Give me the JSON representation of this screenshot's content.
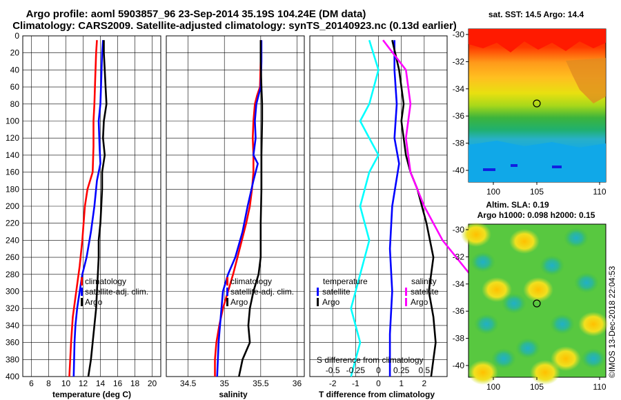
{
  "header": {
    "title_line1": "Argo profile: aoml 5903857_96 23-Sep-2014 35.19S 104.24E (DM data)",
    "title_line2": "Climatology: CARS2009. Satellite-adjusted climatology: synTS_20140923.nc (0.13d earlier)"
  },
  "colors": {
    "climatology": "#ff0000",
    "satellite": "#0000ff",
    "argo": "#000000",
    "t_satellite": "#0000ff",
    "s_satellite": "#ff00ff",
    "s_satellite_diff": "#00ffff"
  },
  "chart_data": [
    {
      "type": "line",
      "id": "temperature",
      "xlabel": "temperature (deg C)",
      "ylabel": "depth",
      "xlim": [
        5,
        21
      ],
      "ylim": [
        400,
        0
      ],
      "xticks": [
        "6",
        "8",
        "10",
        "12",
        "14",
        "16",
        "18",
        "20"
      ],
      "xtick_values": [
        6,
        8,
        10,
        12,
        14,
        16,
        18,
        20
      ],
      "yticks": [
        "0",
        "20",
        "40",
        "60",
        "80",
        "100",
        "120",
        "140",
        "160",
        "180",
        "200",
        "220",
        "240",
        "260",
        "280",
        "300",
        "320",
        "340",
        "360",
        "380",
        "400"
      ],
      "ytick_values": [
        0,
        20,
        40,
        60,
        80,
        100,
        120,
        140,
        160,
        180,
        200,
        220,
        240,
        260,
        280,
        300,
        320,
        340,
        360,
        380,
        400
      ],
      "legend": [
        "climatology",
        "satellite-adj. clim.",
        "Argo"
      ],
      "series": [
        {
          "name": "climatology",
          "color_key": "climatology",
          "points": [
            [
              13.6,
              5
            ],
            [
              13.5,
              20
            ],
            [
              13.4,
              50
            ],
            [
              13.3,
              80
            ],
            [
              13.2,
              100
            ],
            [
              13.2,
              130
            ],
            [
              13.1,
              160
            ],
            [
              12.5,
              180
            ],
            [
              12.2,
              200
            ],
            [
              11.9,
              240
            ],
            [
              11.6,
              270
            ],
            [
              11.2,
              300
            ],
            [
              10.8,
              330
            ],
            [
              10.6,
              360
            ],
            [
              10.4,
              400
            ]
          ]
        },
        {
          "name": "satellite-adj. clim.",
          "color_key": "satellite",
          "points": [
            [
              14.3,
              5
            ],
            [
              14.2,
              20
            ],
            [
              14.1,
              50
            ],
            [
              14.0,
              80
            ],
            [
              13.8,
              100
            ],
            [
              13.9,
              130
            ],
            [
              14.0,
              150
            ],
            [
              13.6,
              170
            ],
            [
              13.3,
              200
            ],
            [
              12.9,
              230
            ],
            [
              12.4,
              260
            ],
            [
              11.9,
              280
            ],
            [
              11.6,
              300
            ],
            [
              11.3,
              320
            ],
            [
              11.1,
              340
            ],
            [
              11.0,
              360
            ],
            [
              10.9,
              400
            ]
          ]
        },
        {
          "name": "Argo",
          "color_key": "argo",
          "points": [
            [
              14.4,
              5
            ],
            [
              14.4,
              20
            ],
            [
              14.5,
              40
            ],
            [
              14.6,
              60
            ],
            [
              14.7,
              80
            ],
            [
              14.4,
              100
            ],
            [
              14.3,
              120
            ],
            [
              14.5,
              140
            ],
            [
              14.2,
              160
            ],
            [
              14.2,
              180
            ],
            [
              14.1,
              200
            ],
            [
              14.0,
              220
            ],
            [
              13.8,
              240
            ],
            [
              13.8,
              260
            ],
            [
              13.7,
              280
            ],
            [
              13.6,
              300
            ],
            [
              13.5,
              320
            ],
            [
              13.3,
              340
            ],
            [
              13.1,
              360
            ],
            [
              12.9,
              380
            ],
            [
              12.6,
              400
            ]
          ]
        }
      ]
    },
    {
      "type": "line",
      "id": "salinity",
      "xlabel": "salinity",
      "xlim": [
        34.2,
        36.1
      ],
      "ylim": [
        400,
        0
      ],
      "xticks": [
        "34.5",
        "35",
        "35.5",
        "36"
      ],
      "xtick_values": [
        34.5,
        35,
        35.5,
        36
      ],
      "legend": [
        "climatology",
        "satellite-adj. clim.",
        "Argo"
      ],
      "series": [
        {
          "name": "climatology",
          "color_key": "climatology",
          "points": [
            [
              35.5,
              5
            ],
            [
              35.5,
              30
            ],
            [
              35.49,
              60
            ],
            [
              35.45,
              70
            ],
            [
              35.42,
              80
            ],
            [
              35.4,
              100
            ],
            [
              35.39,
              120
            ],
            [
              35.4,
              140
            ],
            [
              35.4,
              160
            ],
            [
              35.38,
              180
            ],
            [
              35.35,
              200
            ],
            [
              35.3,
              220
            ],
            [
              35.24,
              240
            ],
            [
              35.18,
              260
            ],
            [
              35.12,
              280
            ],
            [
              35.05,
              300
            ],
            [
              34.98,
              320
            ],
            [
              34.93,
              340
            ],
            [
              34.89,
              360
            ],
            [
              34.87,
              380
            ],
            [
              34.87,
              400
            ]
          ]
        },
        {
          "name": "satellite-adj. clim.",
          "color_key": "satellite",
          "points": [
            [
              35.51,
              5
            ],
            [
              35.51,
              30
            ],
            [
              35.5,
              60
            ],
            [
              35.44,
              80
            ],
            [
              35.42,
              100
            ],
            [
              35.43,
              120
            ],
            [
              35.4,
              140
            ],
            [
              35.46,
              150
            ],
            [
              35.4,
              170
            ],
            [
              35.32,
              200
            ],
            [
              35.25,
              230
            ],
            [
              35.15,
              260
            ],
            [
              35.05,
              280
            ],
            [
              34.98,
              300
            ],
            [
              34.95,
              330
            ],
            [
              34.92,
              360
            ],
            [
              34.9,
              400
            ]
          ]
        },
        {
          "name": "Argo",
          "color_key": "argo",
          "points": [
            [
              35.5,
              5
            ],
            [
              35.5,
              30
            ],
            [
              35.51,
              60
            ],
            [
              35.52,
              80
            ],
            [
              35.52,
              100
            ],
            [
              35.51,
              140
            ],
            [
              35.51,
              180
            ],
            [
              35.5,
              220
            ],
            [
              35.5,
              260
            ],
            [
              35.47,
              280
            ],
            [
              35.4,
              300
            ],
            [
              35.35,
              320
            ],
            [
              35.33,
              340
            ],
            [
              35.35,
              360
            ],
            [
              35.25,
              380
            ],
            [
              35.2,
              400
            ]
          ]
        }
      ]
    },
    {
      "type": "line",
      "id": "difference",
      "xlabel": "T difference from climatology",
      "xlabel_top": "S difference from climatology",
      "xlim": [
        -3,
        3
      ],
      "ylim": [
        400,
        0
      ],
      "xticks": [
        "-2",
        "-1",
        "0",
        "1",
        "2"
      ],
      "xtick_values": [
        -2,
        -1,
        0,
        1,
        2
      ],
      "sticks": [
        "-0.5",
        "-0.25",
        "0",
        "0.25",
        "0.5"
      ],
      "stick_values": [
        -0.5,
        -0.25,
        0,
        0.25,
        0.5
      ],
      "legend_temperature_title": "temperature",
      "legend_salinity_title": "salinity",
      "legend_temperature": [
        "satellite",
        "Argo"
      ],
      "legend_salinity": [
        "satellite",
        "Argo"
      ],
      "series": [
        {
          "name": "T satellite",
          "color_key": "t_satellite",
          "points": [
            [
              0.7,
              5
            ],
            [
              0.7,
              40
            ],
            [
              0.8,
              80
            ],
            [
              0.7,
              120
            ],
            [
              0.9,
              150
            ],
            [
              0.6,
              200
            ],
            [
              0.5,
              250
            ],
            [
              0.6,
              300
            ],
            [
              0.5,
              350
            ],
            [
              0.5,
              400
            ]
          ]
        },
        {
          "name": "T Argo",
          "color_key": "argo",
          "points": [
            [
              0.6,
              5
            ],
            [
              0.9,
              40
            ],
            [
              1.0,
              60
            ],
            [
              1.1,
              80
            ],
            [
              1.0,
              100
            ],
            [
              1.1,
              120
            ],
            [
              1.2,
              140
            ],
            [
              1.4,
              160
            ],
            [
              1.7,
              180
            ],
            [
              1.9,
              200
            ],
            [
              2.1,
              220
            ],
            [
              2.4,
              260
            ],
            [
              2.2,
              300
            ],
            [
              2.4,
              330
            ],
            [
              2.5,
              360
            ],
            [
              2.3,
              400
            ]
          ]
        },
        {
          "name": "S satellite",
          "color_key": "s_satellite_diff",
          "points": [
            [
              -0.1,
              5
            ],
            [
              0.0,
              40
            ],
            [
              -0.1,
              80
            ],
            [
              -0.2,
              100
            ],
            [
              -0.1,
              120
            ],
            [
              0.0,
              140
            ],
            [
              -0.1,
              160
            ],
            [
              -0.2,
              200
            ],
            [
              -0.1,
              240
            ],
            [
              -0.2,
              280
            ],
            [
              -0.3,
              320
            ],
            [
              -0.2,
              360
            ],
            [
              -0.3,
              400
            ]
          ]
        },
        {
          "name": "S Argo",
          "color_key": "s_satellite",
          "points": [
            [
              0.05,
              5
            ],
            [
              0.3,
              40
            ],
            [
              0.35,
              80
            ],
            [
              0.3,
              120
            ],
            [
              0.35,
              160
            ],
            [
              0.5,
              200
            ],
            [
              0.7,
              240
            ],
            [
              1.0,
              280
            ],
            [
              1.2,
              320
            ],
            [
              1.3,
              360
            ],
            [
              1.2,
              400
            ]
          ]
        }
      ]
    }
  ],
  "maps": {
    "sst": {
      "title": "sat. SST: 14.5 Argo: 14.4",
      "lat_ticks": [
        "-30",
        "-32",
        "-34",
        "-36",
        "-38",
        "-40"
      ],
      "lon_ticks": [
        "100",
        "105",
        "110"
      ]
    },
    "sla": {
      "title_line1": "Altim. SLA: 0.19",
      "title_line2": "Argo h1000: 0.098 h2000: 0.15",
      "lat_ticks": [
        "-30",
        "-32",
        "-34",
        "-36",
        "-38",
        "-40"
      ],
      "lon_ticks": [
        "100",
        "105",
        "110"
      ]
    }
  },
  "watermark": "©IMOS 13-Dec-2018 22:04:53"
}
